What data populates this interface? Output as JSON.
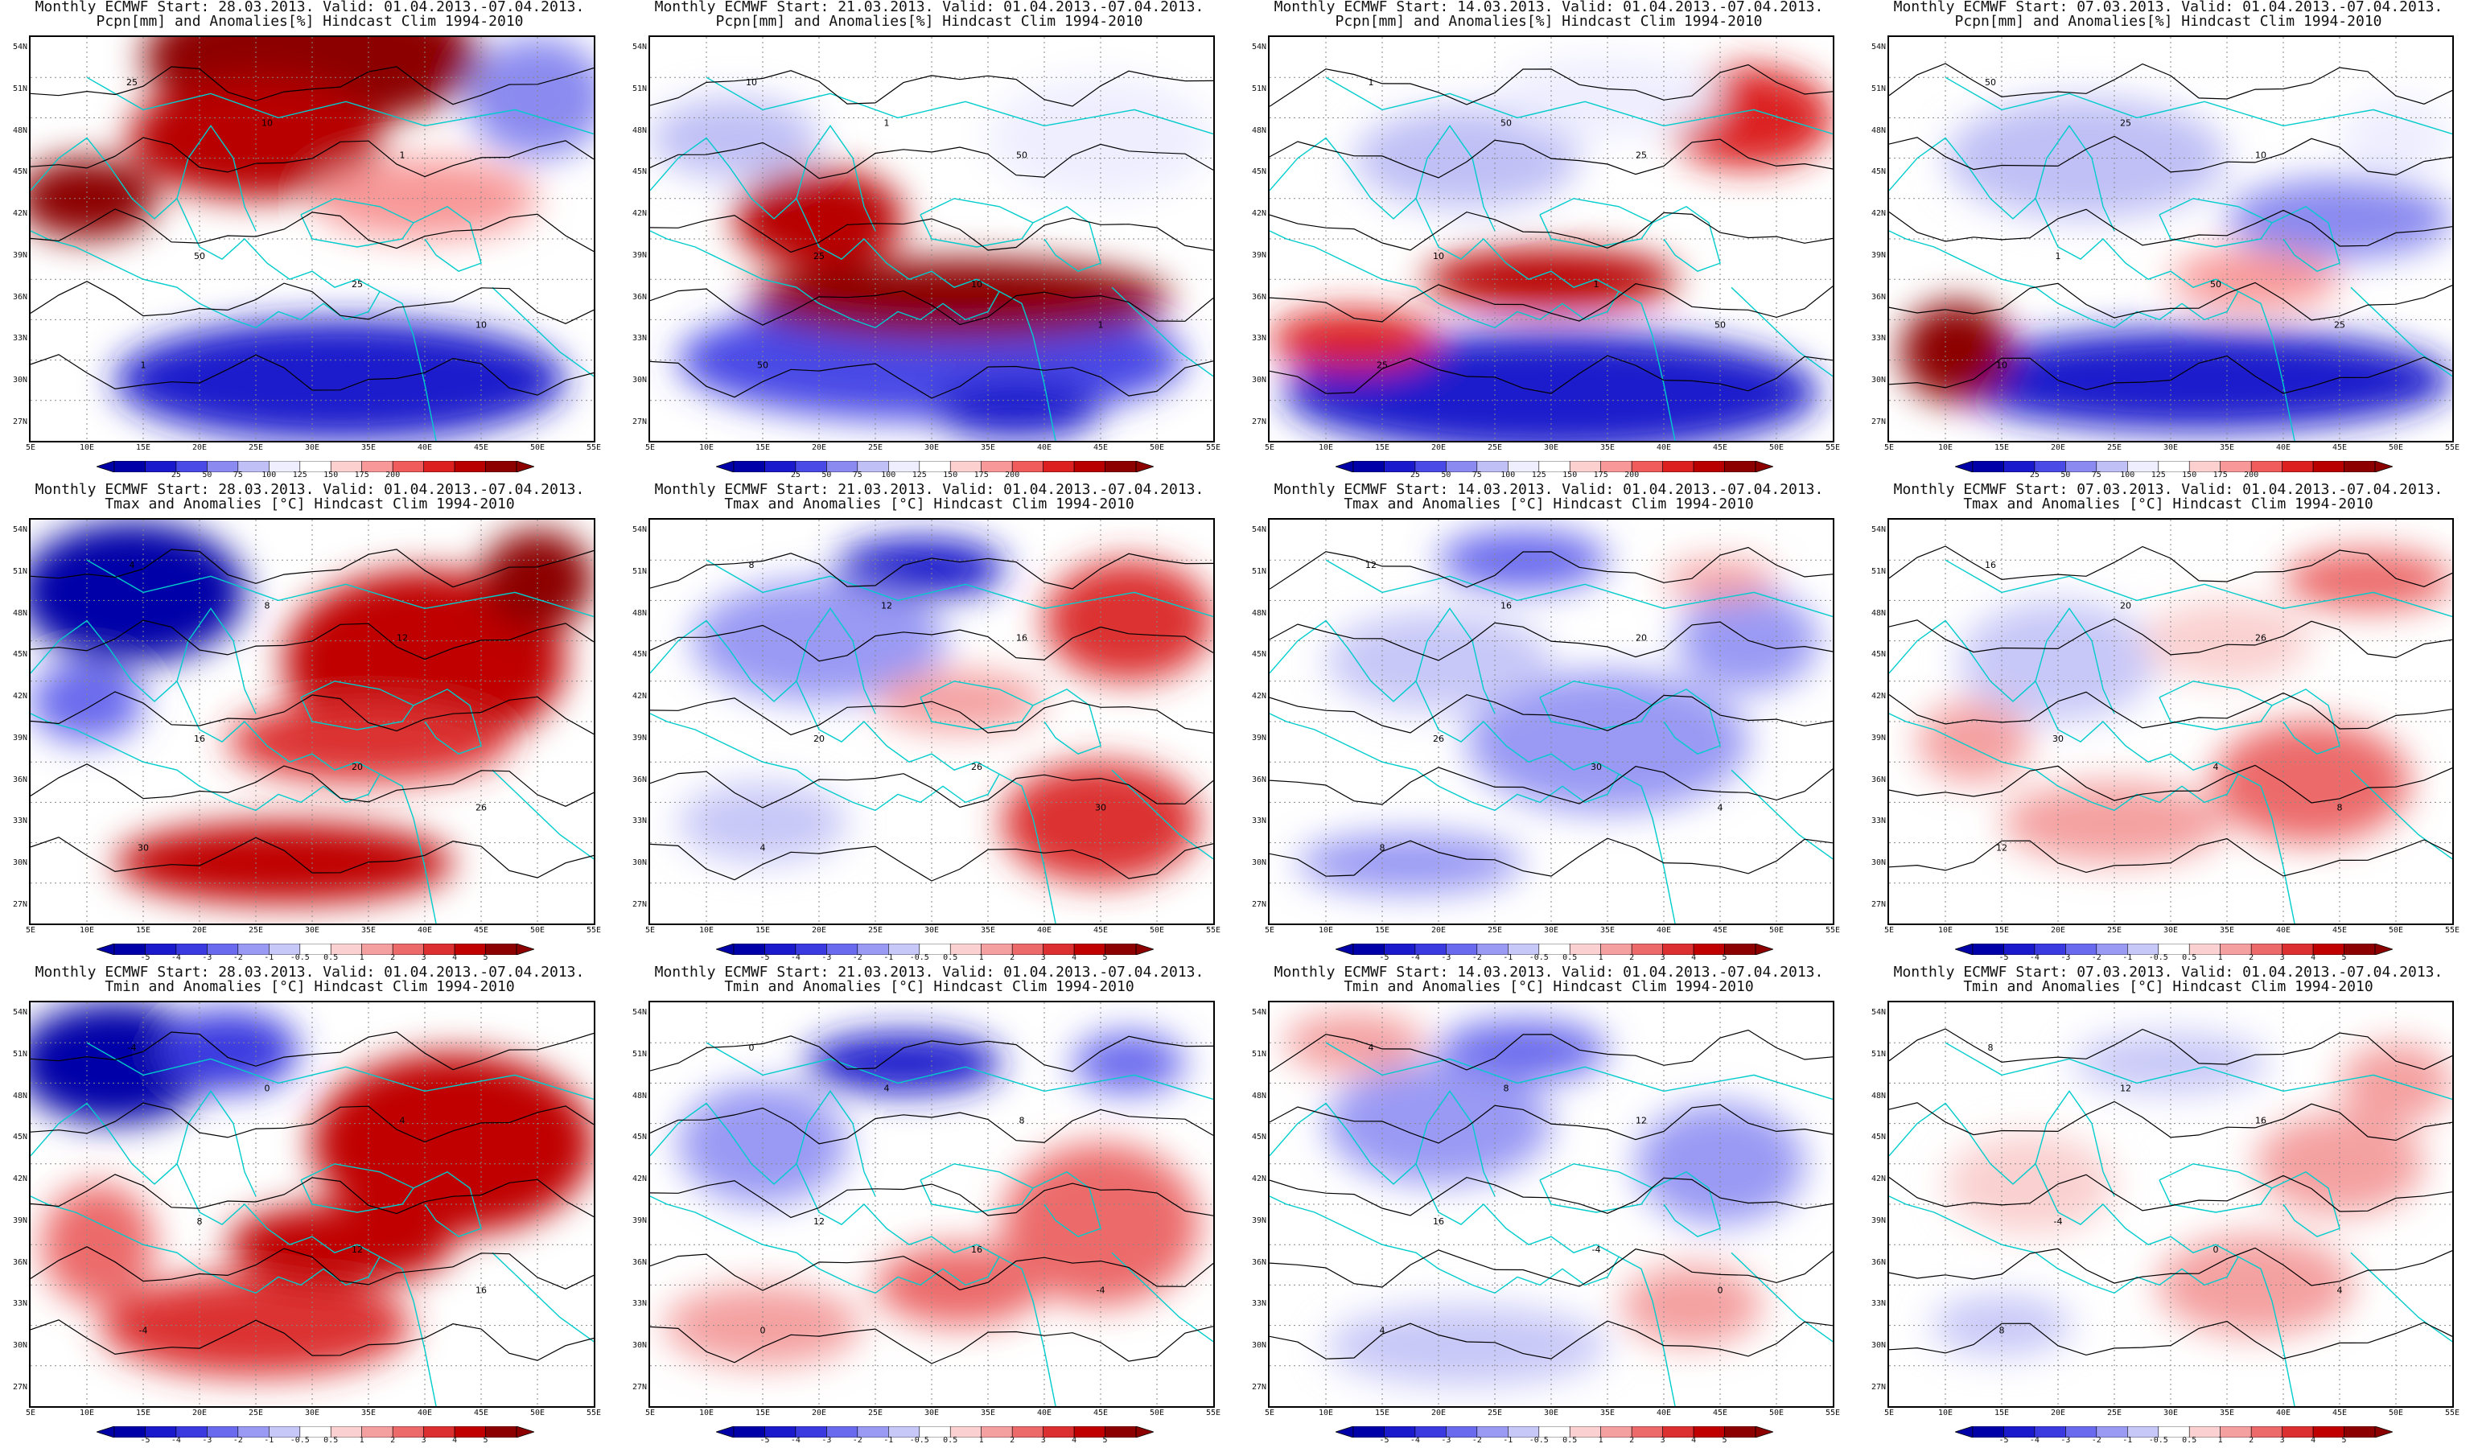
{
  "panels": [
    {
      "title1": "Monthly ECMWF Start: 28.03.2013. Valid: 01.04.2013.-07.04.2013.",
      "title2": "Pcpn[mm] and Anomalies[%] Hindcast Clim 1994-2010",
      "variable": "pcpn",
      "start": "28.03.2013."
    },
    {
      "title1": "Monthly ECMWF Start: 21.03.2013. Valid: 01.04.2013.-07.04.2013.",
      "title2": "Pcpn[mm] and Anomalies[%] Hindcast Clim 1994-2010",
      "variable": "pcpn",
      "start": "21.03.2013."
    },
    {
      "title1": "Monthly ECMWF Start: 14.03.2013. Valid: 01.04.2013.-07.04.2013.",
      "title2": "Pcpn[mm] and Anomalies[%] Hindcast Clim 1994-2010",
      "variable": "pcpn",
      "start": "14.03.2013."
    },
    {
      "title1": "Monthly ECMWF Start: 07.03.2013. Valid: 01.04.2013.-07.04.2013.",
      "title2": "Pcpn[mm] and Anomalies[%] Hindcast Clim 1994-2010",
      "variable": "pcpn",
      "start": "07.03.2013."
    },
    {
      "title1": "Monthly ECMWF Start: 28.03.2013. Valid: 01.04.2013.-07.04.2013.",
      "title2": "Tmax and Anomalies [°C] Hindcast Clim 1994-2010",
      "variable": "tmax",
      "start": "28.03.2013."
    },
    {
      "title1": "Monthly ECMWF Start: 21.03.2013. Valid: 01.04.2013.-07.04.2013.",
      "title2": "Tmax and Anomalies [°C] Hindcast Clim 1994-2010",
      "variable": "tmax",
      "start": "21.03.2013."
    },
    {
      "title1": "Monthly ECMWF Start: 14.03.2013. Valid: 01.04.2013.-07.04.2013.",
      "title2": "Tmax and Anomalies [°C] Hindcast Clim 1994-2010",
      "variable": "tmax",
      "start": "14.03.2013."
    },
    {
      "title1": "Monthly ECMWF Start: 07.03.2013. Valid: 01.04.2013.-07.04.2013.",
      "title2": "Tmax and Anomalies [°C] Hindcast Clim 1994-2010",
      "variable": "tmax",
      "start": "07.03.2013."
    },
    {
      "title1": "Monthly ECMWF Start: 28.03.2013. Valid: 01.04.2013.-07.04.2013.",
      "title2": "Tmin and Anomalies [°C] Hindcast Clim 1994-2010",
      "variable": "tmin",
      "start": "28.03.2013."
    },
    {
      "title1": "Monthly ECMWF Start: 21.03.2013. Valid: 01.04.2013.-07.04.2013.",
      "title2": "Tmin and Anomalies [°C] Hindcast Clim 1994-2010",
      "variable": "tmin",
      "start": "21.03.2013."
    },
    {
      "title1": "Monthly ECMWF Start: 14.03.2013. Valid: 01.04.2013.-07.04.2013.",
      "title2": "Tmin and Anomalies [°C] Hindcast Clim 1994-2010",
      "variable": "tmin",
      "start": "14.03.2013."
    },
    {
      "title1": "Monthly ECMWF Start: 07.03.2013. Valid: 01.04.2013.-07.04.2013.",
      "title2": "Tmin and Anomalies [°C] Hindcast Clim 1994-2010",
      "variable": "tmin",
      "start": "07.03.2013."
    }
  ],
  "lat_labels": [
    "54N",
    "51N",
    "48N",
    "45N",
    "42N",
    "39N",
    "36N",
    "33N",
    "30N",
    "27N"
  ],
  "lon_labels": [
    "5E",
    "10E",
    "15E",
    "20E",
    "25E",
    "30E",
    "35E",
    "40E",
    "45E",
    "50E",
    "55E"
  ],
  "pcpn_legend": {
    "ticks": [
      "25",
      "50",
      "75",
      "100",
      "125",
      "150",
      "175",
      "200"
    ],
    "colors": [
      "#0000a8",
      "#1a1acc",
      "#4a4ae6",
      "#8a8af0",
      "#c0c0f6",
      "#eeeeff",
      "#ffffff",
      "#fdd0d0",
      "#f89898",
      "#f05c5c",
      "#dc2020",
      "#b80000",
      "#8c0000"
    ]
  },
  "temp_legend": {
    "ticks": [
      "-5",
      "-4",
      "-3",
      "-2",
      "-1",
      "-0.5",
      "0.5",
      "1",
      "2",
      "3",
      "4",
      "5"
    ],
    "colors": [
      "#0000a8",
      "#1a1acc",
      "#3a3ae0",
      "#6a6aee",
      "#9a9af4",
      "#c8c8f8",
      "#ffffff",
      "#fad0d0",
      "#f4a0a0",
      "#ec6a6a",
      "#dc3030",
      "#c00000",
      "#8c0000"
    ]
  },
  "contour_labels": {
    "pcpn": [
      "25",
      "10",
      "1",
      "50"
    ],
    "tmax": [
      "4",
      "8",
      "12",
      "16",
      "20",
      "26",
      "30"
    ],
    "tmin": [
      "-4",
      "0",
      "4",
      "8",
      "12",
      "16"
    ]
  },
  "map_colors": {
    "coast": "#00cccc",
    "contour": "#000000",
    "gridline": "#888888"
  }
}
